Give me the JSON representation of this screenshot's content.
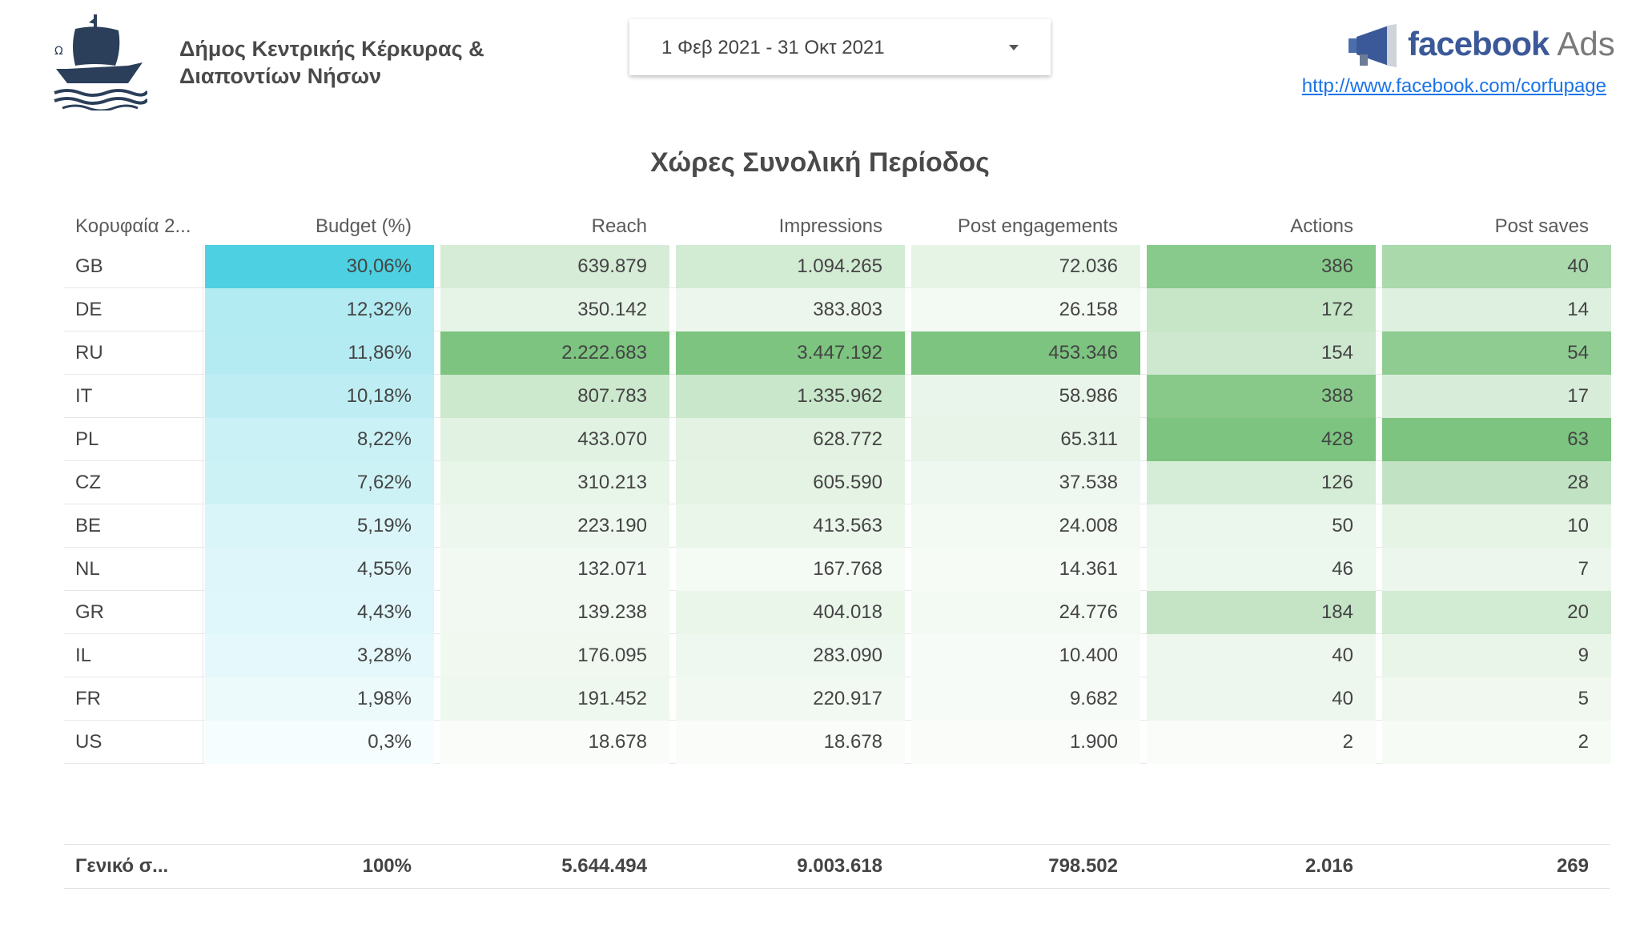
{
  "header": {
    "org_name": "Δήμος Κεντρικής Κέρκυρας & Διαποντίων Νήσων",
    "logo_icon": "ship-icon",
    "date_range": "1 Φεβ 2021 - 31 Οκτ 2021",
    "facebook_word": "facebook",
    "ads_word": "Ads",
    "page_link": "http://www.facebook.com/corfupage"
  },
  "table": {
    "title": "Χώρες Συνολική Περίοδος",
    "columns": [
      "Κορυφαία 2...",
      "Budget (%)",
      "Reach",
      "Impressions",
      "Post engagements",
      "Actions",
      "Post saves"
    ],
    "rows": [
      {
        "country": "GB",
        "budget": "30,06%",
        "reach": "639.879",
        "impressions": "1.094.265",
        "engagements": "72.036",
        "actions": "386",
        "saves": "40"
      },
      {
        "country": "DE",
        "budget": "12,32%",
        "reach": "350.142",
        "impressions": "383.803",
        "engagements": "26.158",
        "actions": "172",
        "saves": "14"
      },
      {
        "country": "RU",
        "budget": "11,86%",
        "reach": "2.222.683",
        "impressions": "3.447.192",
        "engagements": "453.346",
        "actions": "154",
        "saves": "54"
      },
      {
        "country": "IT",
        "budget": "10,18%",
        "reach": "807.783",
        "impressions": "1.335.962",
        "engagements": "58.986",
        "actions": "388",
        "saves": "17"
      },
      {
        "country": "PL",
        "budget": "8,22%",
        "reach": "433.070",
        "impressions": "628.772",
        "engagements": "65.311",
        "actions": "428",
        "saves": "63"
      },
      {
        "country": "CZ",
        "budget": "7,62%",
        "reach": "310.213",
        "impressions": "605.590",
        "engagements": "37.538",
        "actions": "126",
        "saves": "28"
      },
      {
        "country": "BE",
        "budget": "5,19%",
        "reach": "223.190",
        "impressions": "413.563",
        "engagements": "24.008",
        "actions": "50",
        "saves": "10"
      },
      {
        "country": "NL",
        "budget": "4,55%",
        "reach": "132.071",
        "impressions": "167.768",
        "engagements": "14.361",
        "actions": "46",
        "saves": "7"
      },
      {
        "country": "GR",
        "budget": "4,43%",
        "reach": "139.238",
        "impressions": "404.018",
        "engagements": "24.776",
        "actions": "184",
        "saves": "20"
      },
      {
        "country": "IL",
        "budget": "3,28%",
        "reach": "176.095",
        "impressions": "283.090",
        "engagements": "10.400",
        "actions": "40",
        "saves": "9"
      },
      {
        "country": "FR",
        "budget": "1,98%",
        "reach": "191.452",
        "impressions": "220.917",
        "engagements": "9.682",
        "actions": "40",
        "saves": "5"
      },
      {
        "country": "US",
        "budget": "0,3%",
        "reach": "18.678",
        "impressions": "18.678",
        "engagements": "1.900",
        "actions": "2",
        "saves": "2"
      }
    ],
    "totals": {
      "country": "Γενικό σ...",
      "budget": "100%",
      "reach": "5.644.494",
      "impressions": "9.003.618",
      "engagements": "798.502",
      "actions": "2.016",
      "saves": "269"
    },
    "heat_colors": {
      "budget": "#4dd0e1",
      "metrics": "#7cc47f"
    }
  }
}
